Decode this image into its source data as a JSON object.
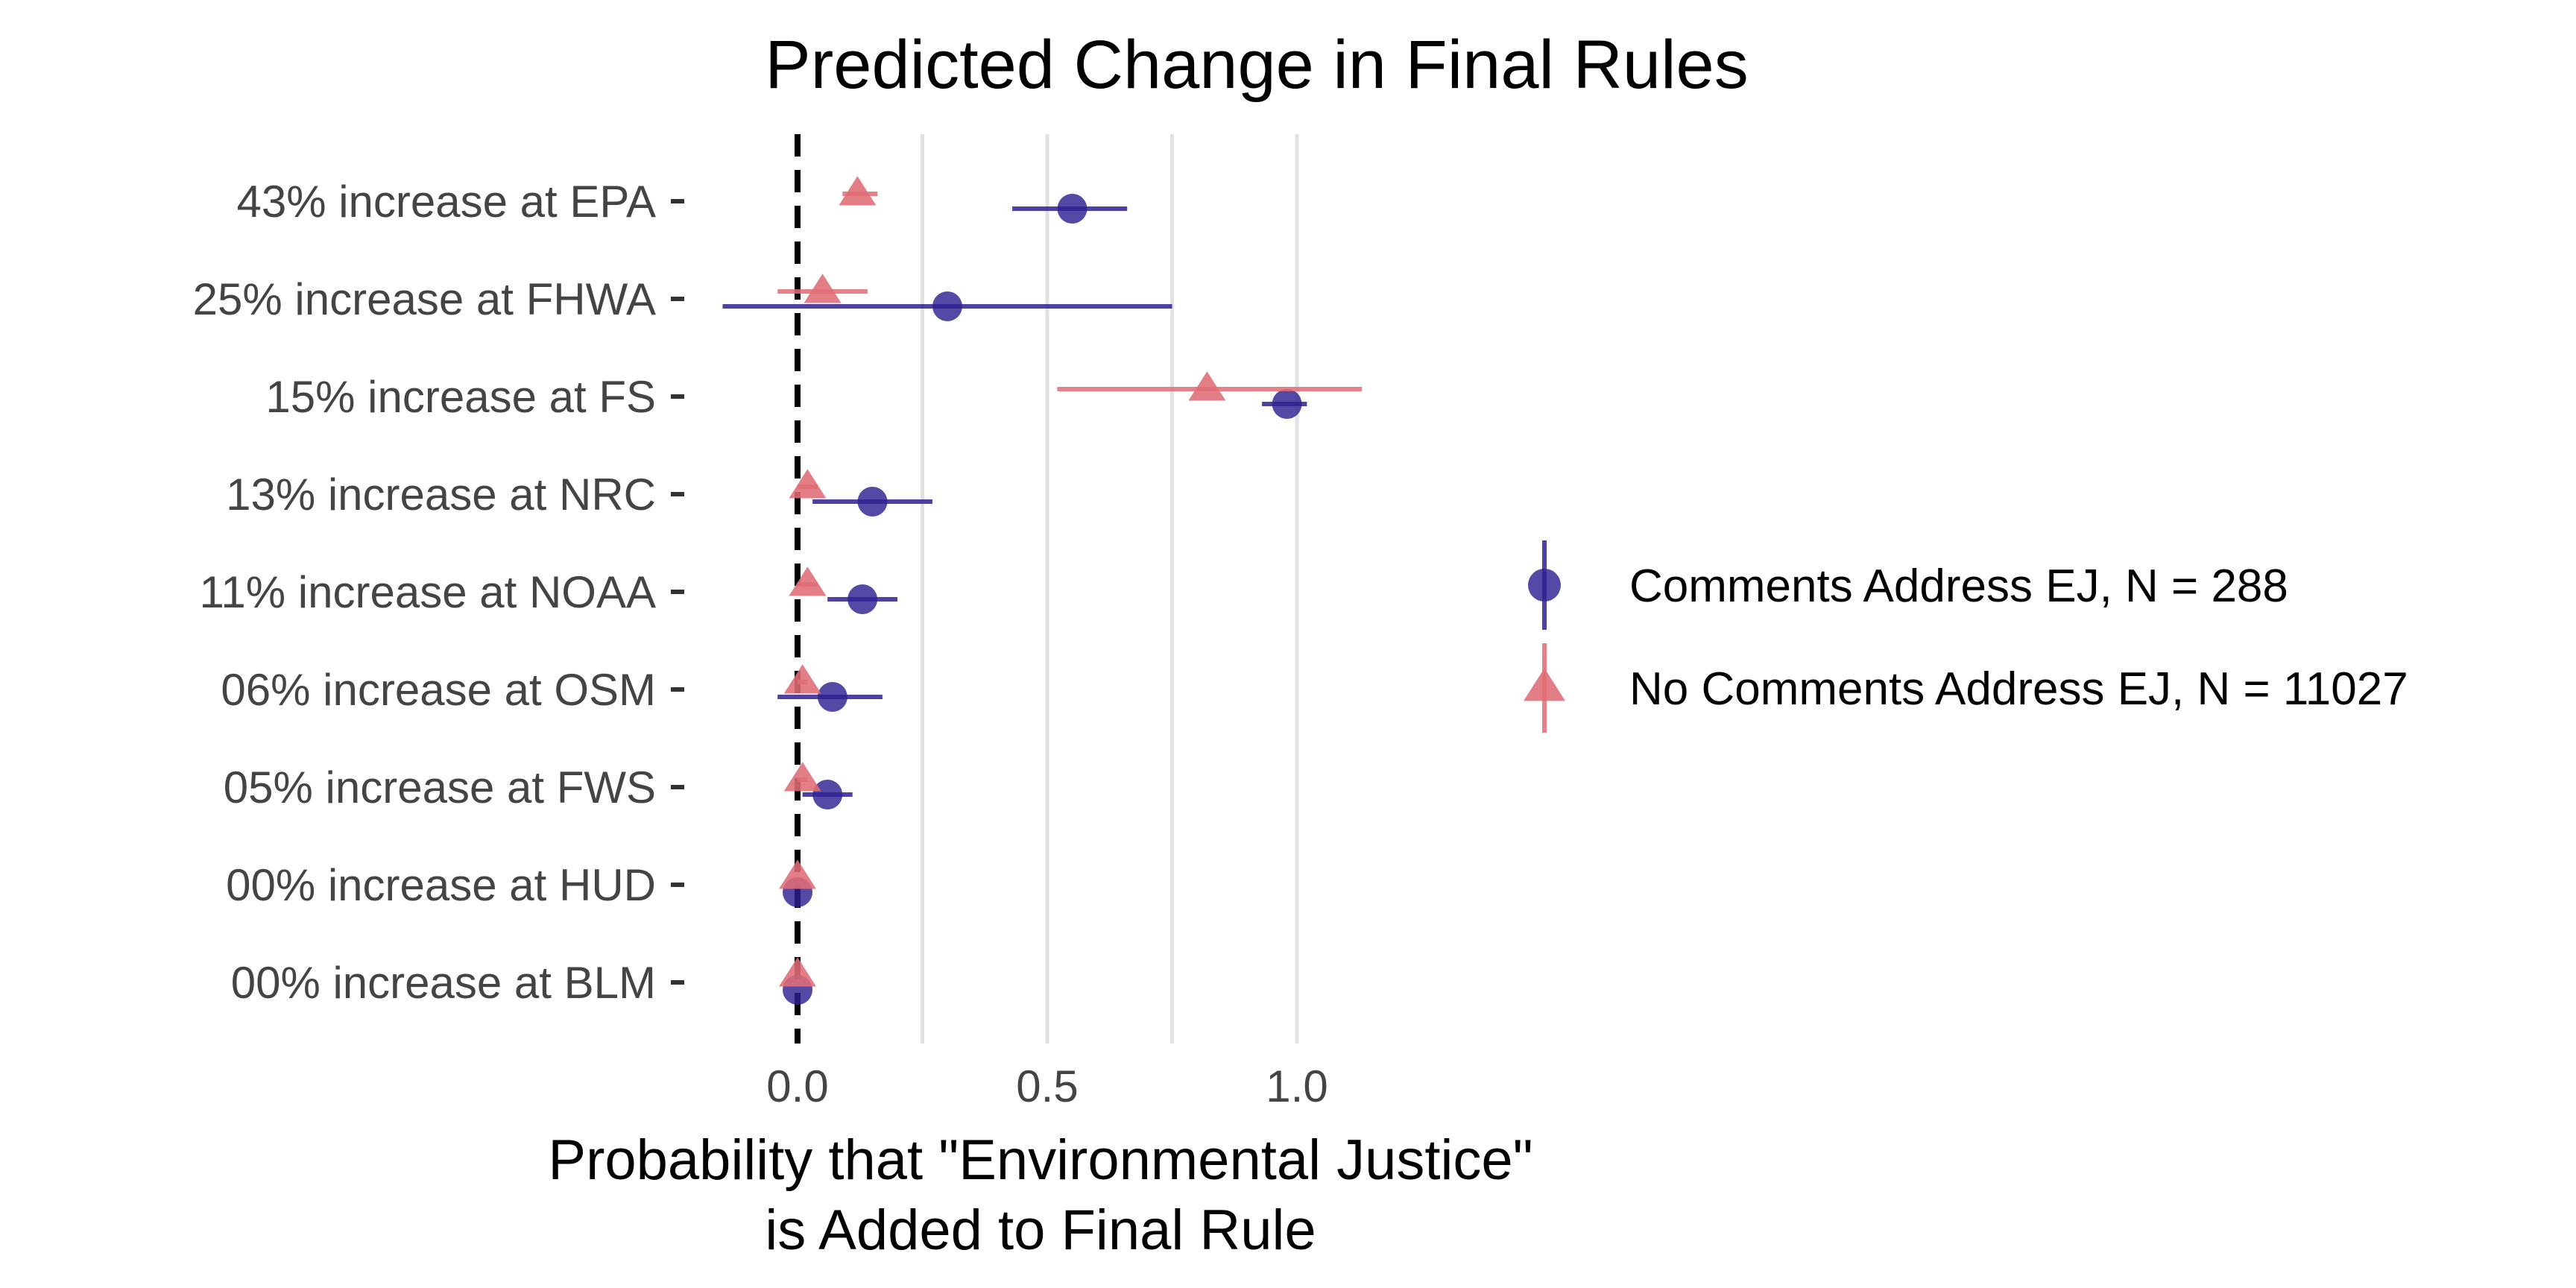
{
  "chart_data": {
    "type": "dot-errorbar",
    "title": "Predicted Change in Final Rules",
    "xlabel_lines": [
      "Probability that \"Environmental Justice\"",
      "is Added to Final Rule"
    ],
    "ylabel": "",
    "xlim": [
      -0.25,
      1.15
    ],
    "x_ticks": [
      0.0,
      0.5,
      1.0
    ],
    "x_tick_labels": [
      "0.0",
      "0.5",
      "1.0"
    ],
    "gridlines_x": [
      0.25,
      0.5,
      0.75,
      1.0
    ],
    "reference_line_x": 0,
    "categories": [
      "43% increase at EPA",
      "25% increase at FHWA",
      "15% increase at FS",
      "13% increase at NRC",
      "11% increase at NOAA",
      "06% increase at OSM",
      "05% increase at FWS",
      "00% increase at HUD",
      "00% increase at BLM"
    ],
    "series": [
      {
        "name": "Comments Address EJ, N = 288",
        "marker": "circle",
        "color": "#2E2291",
        "estimate": [
          0.55,
          0.3,
          0.98,
          0.15,
          0.13,
          0.07,
          0.06,
          0.0,
          0.0
        ],
        "lower": [
          0.43,
          -0.15,
          0.93,
          0.03,
          0.06,
          -0.04,
          0.01,
          0.0,
          0.0
        ],
        "upper": [
          0.66,
          0.75,
          1.02,
          0.27,
          0.2,
          0.17,
          0.11,
          0.0,
          0.0
        ]
      },
      {
        "name": "No Comments Address EJ, N = 11027",
        "marker": "triangle",
        "color": "#E06C75",
        "estimate": [
          0.12,
          0.05,
          0.82,
          0.02,
          0.02,
          0.01,
          0.01,
          0.0,
          0.0
        ],
        "lower": [
          0.09,
          -0.04,
          0.52,
          0.0,
          0.0,
          0.0,
          0.0,
          0.0,
          0.0
        ],
        "upper": [
          0.16,
          0.14,
          1.13,
          0.04,
          0.04,
          0.02,
          0.02,
          0.0,
          0.0
        ]
      }
    ],
    "legend_position": "right"
  }
}
